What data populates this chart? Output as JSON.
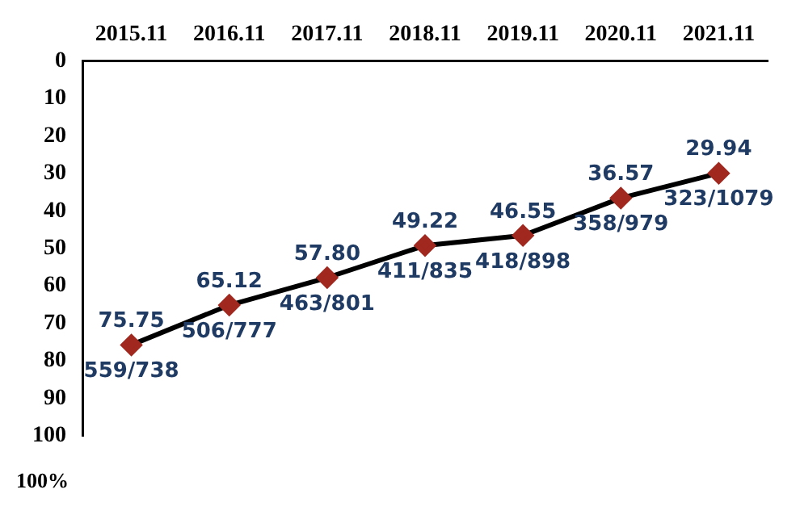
{
  "chart_data": {
    "type": "line",
    "ylabel": "100%",
    "categories": [
      "2015.11",
      "2016.11",
      "2017.11",
      "2018.11",
      "2019.11",
      "2020.11",
      "2021.11"
    ],
    "series": [
      {
        "color": "#000000",
        "colors": [
          "#a0281e",
          "#a0281e",
          "#a0281e",
          "#a0281e",
          "#a0281e",
          "#a0281e",
          "#a0281e"
        ],
        "values": [
          75.75,
          65.12,
          57.8,
          49.22,
          46.55,
          36.57,
          29.94
        ],
        "value_labels": [
          "75.75",
          "65.12",
          "57.80",
          "49.22",
          "46.55",
          "36.57",
          "29.94"
        ]
      }
    ],
    "ylim": [
      100,
      0
    ],
    "yticks": [
      0,
      10,
      20,
      30,
      40,
      50,
      60,
      70,
      80,
      90,
      100
    ],
    "grid": false,
    "legend": false,
    "marker": "diamond",
    "line_style": "solid",
    "annotations": [
      {
        "text": "559/738",
        "x": "2015.11",
        "y": 75.75
      },
      {
        "text": "506/777",
        "x": "2016.11",
        "y": 65.12
      },
      {
        "text": "463/801",
        "x": "2017.11",
        "y": 57.8
      },
      {
        "text": "411/835",
        "x": "2018.11",
        "y": 49.22
      },
      {
        "text": "418/898",
        "x": "2019.11",
        "y": 46.55
      },
      {
        "text": "358/979",
        "x": "2020.11",
        "y": 36.57
      },
      {
        "text": "323/1079",
        "x": "2021.11",
        "y": 29.94
      }
    ]
  }
}
